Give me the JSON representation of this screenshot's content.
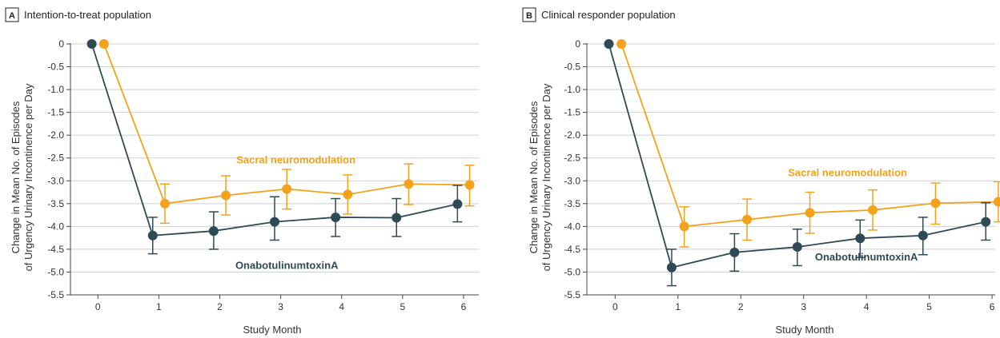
{
  "colors": {
    "sacral": "#F4A21C",
    "onabot": "#2E4A54"
  },
  "chart_data": [
    {
      "type": "line",
      "panel_letter": "A",
      "title": "Intention-to-treat population",
      "xlabel": "Study Month",
      "ylabel_line1": "Change in Mean No. of Episodes",
      "ylabel_line2": "of Urgency Urinary Incontinence per Day",
      "x_ticks": [
        "0",
        "1",
        "2",
        "3",
        "4",
        "5",
        "6"
      ],
      "y_ticks": [
        "0",
        "-0.5",
        "-1.0",
        "-1.5",
        "-2.0",
        "-2.5",
        "-3.0",
        "-3.5",
        "-4.0",
        "-4.5",
        "-5.0",
        "-5.5"
      ],
      "ylim": [
        -5.5,
        0
      ],
      "xlim": [
        -0.45,
        6.25
      ],
      "series": [
        {
          "name": "Sacral neuromodulation",
          "color_key": "sacral",
          "x": [
            0.1,
            1.1,
            2.1,
            3.1,
            4.1,
            5.1,
            6.1
          ],
          "y": [
            0,
            -3.5,
            -3.32,
            -3.18,
            -3.3,
            -3.07,
            -3.09
          ],
          "err_low": [
            null,
            -3.93,
            -3.75,
            -3.62,
            -3.73,
            -3.52,
            -3.55
          ],
          "err_high": [
            null,
            -3.07,
            -2.89,
            -2.75,
            -2.87,
            -2.63,
            -2.66
          ]
        },
        {
          "name": "OnabotulinumtoxinA",
          "color_key": "onabot",
          "x": [
            -0.1,
            0.9,
            1.9,
            2.9,
            3.9,
            4.9,
            5.9
          ],
          "y": [
            0,
            -4.2,
            -4.1,
            -3.9,
            -3.8,
            -3.81,
            -3.51
          ],
          "err_low": [
            null,
            -4.6,
            -4.5,
            -4.3,
            -4.22,
            -4.22,
            -3.9
          ],
          "err_high": [
            null,
            -3.8,
            -3.68,
            -3.35,
            -3.39,
            -3.39,
            -3.1
          ]
        }
      ],
      "annotations": [
        {
          "text": "Sacral neuromodulation",
          "color_key": "sacral",
          "x": 3.25,
          "y": -2.62
        },
        {
          "text": "OnabotulinumtoxinA",
          "color_key": "onabot",
          "x": 3.1,
          "y": -4.93
        }
      ]
    },
    {
      "type": "line",
      "panel_letter": "B",
      "title": "Clinical responder population",
      "xlabel": "Study Month",
      "ylabel_line1": "Change in Mean No. of Episodes",
      "ylabel_line2": "of Urgency Urinary Incontinence per Day",
      "x_ticks": [
        "0",
        "1",
        "2",
        "3",
        "4",
        "5",
        "6"
      ],
      "y_ticks": [
        "0",
        "-0.5",
        "-1.0",
        "-1.5",
        "-2.0",
        "-2.5",
        "-3.0",
        "-3.5",
        "-4.0",
        "-4.5",
        "-5.0",
        "-5.5"
      ],
      "ylim": [
        -5.5,
        0
      ],
      "xlim": [
        -0.45,
        6.05
      ],
      "series": [
        {
          "name": "Sacral neuromodulation",
          "color_key": "sacral",
          "x": [
            0.1,
            1.1,
            2.1,
            3.1,
            4.1,
            5.1,
            6.1
          ],
          "y": [
            0,
            -4.0,
            -3.85,
            -3.7,
            -3.64,
            -3.49,
            -3.46
          ],
          "err_low": [
            null,
            -4.45,
            -4.3,
            -4.15,
            -4.08,
            -3.95,
            -3.9
          ],
          "err_high": [
            null,
            -3.57,
            -3.4,
            -3.25,
            -3.2,
            -3.05,
            -3.02
          ]
        },
        {
          "name": "OnabotulinumtoxinA",
          "color_key": "onabot",
          "x": [
            -0.1,
            0.9,
            1.9,
            2.9,
            3.9,
            4.9,
            5.9
          ],
          "y": [
            0,
            -4.9,
            -4.57,
            -4.45,
            -4.26,
            -4.2,
            -3.9
          ],
          "err_low": [
            null,
            -5.3,
            -4.98,
            -4.86,
            -4.68,
            -4.62,
            -4.3
          ],
          "err_high": [
            null,
            -4.5,
            -4.16,
            -4.06,
            -3.86,
            -3.8,
            -3.48
          ]
        }
      ],
      "annotations": [
        {
          "text": "Sacral neuromodulation",
          "color_key": "sacral",
          "x": 3.7,
          "y": -2.9
        },
        {
          "text": "OnabotulinumtoxinA",
          "color_key": "onabot",
          "x": 4.0,
          "y": -4.75
        }
      ]
    }
  ]
}
